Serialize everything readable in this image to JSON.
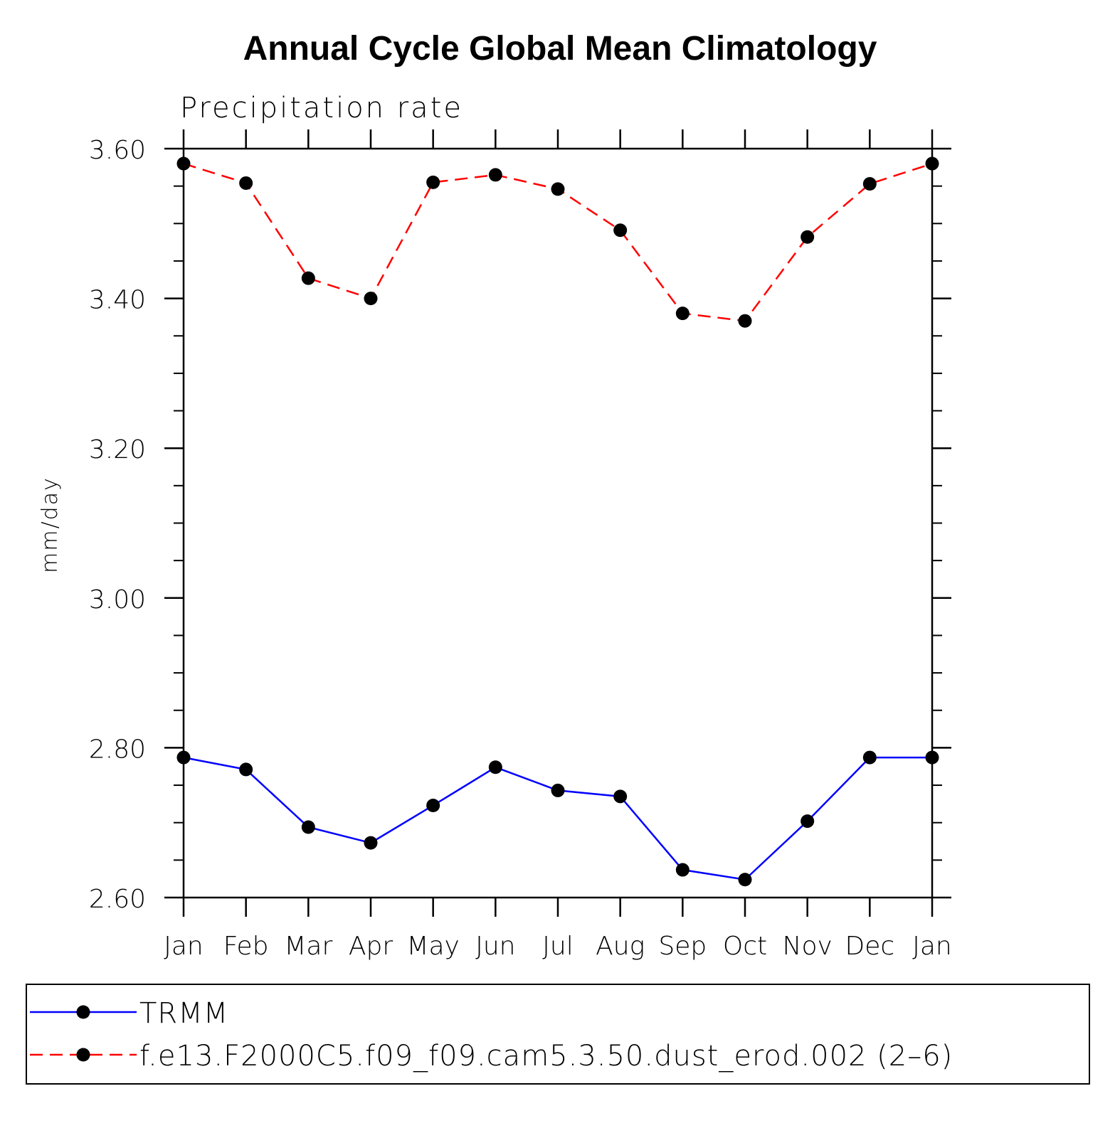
{
  "chart_data": {
    "type": "line",
    "title": "Annual Cycle Global Mean Climatology",
    "subtitle": "Precipitation rate",
    "ylabel": "mm/day",
    "xlabel": "",
    "categories": [
      "Jan",
      "Feb",
      "Mar",
      "Apr",
      "May",
      "Jun",
      "Jul",
      "Aug",
      "Sep",
      "Oct",
      "Nov",
      "Dec",
      "Jan"
    ],
    "ylim": [
      2.6,
      3.6
    ],
    "yticks": [
      "2.60",
      "2.80",
      "3.00",
      "3.20",
      "3.40",
      "3.60"
    ],
    "grid": false,
    "legend_position": "bottom",
    "series": [
      {
        "name": "TRMM",
        "color": "#0000ff",
        "style": "solid",
        "marker": "circle",
        "values": [
          2.787,
          2.771,
          2.694,
          2.673,
          2.723,
          2.774,
          2.743,
          2.735,
          2.637,
          2.624,
          2.702,
          2.787,
          2.787
        ]
      },
      {
        "name": "f.e13.F2000C5.f09_f09.cam5.3.50.dust_erod.002 (2–6)",
        "color": "#ff0000",
        "style": "dashed",
        "marker": "circle",
        "values": [
          3.58,
          3.554,
          3.427,
          3.4,
          3.555,
          3.565,
          3.546,
          3.491,
          3.38,
          3.37,
          3.482,
          3.553,
          3.58
        ]
      }
    ]
  }
}
